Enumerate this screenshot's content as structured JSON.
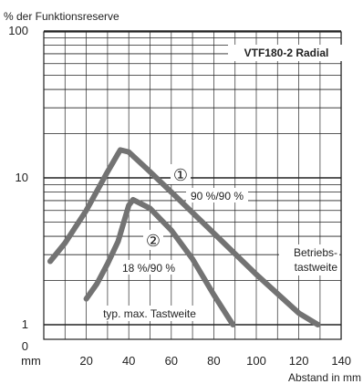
{
  "chart_data": {
    "type": "line",
    "title": "VTF180-2 Radial",
    "ylabel": "% der Funktionsreserve",
    "xlabel": "Abstand in mm",
    "x_unit_label": "mm",
    "xlim": [
      0,
      140
    ],
    "ylim": [
      1,
      100
    ],
    "y_scale": "log",
    "x_ticks": [
      20,
      40,
      60,
      80,
      100,
      120,
      140
    ],
    "y_ticks": [
      1,
      10,
      100
    ],
    "y_zero_label": "0",
    "grid": true,
    "series": [
      {
        "name": "①",
        "label": "90 %/90 %",
        "color": "#737373",
        "x": [
          3,
          10,
          20,
          30,
          36,
          40,
          50,
          60,
          80,
          100,
          120,
          129
        ],
        "y": [
          2.7,
          3.6,
          6.0,
          11.0,
          15.5,
          15.0,
          11.0,
          8.0,
          4.2,
          2.2,
          1.2,
          1.0
        ]
      },
      {
        "name": "②",
        "label": "18 %/90 %",
        "color": "#737373",
        "x": [
          20,
          25,
          30,
          35,
          40,
          42,
          50,
          60,
          70,
          80,
          89
        ],
        "y": [
          1.5,
          1.9,
          2.6,
          3.7,
          6.5,
          7.1,
          6.2,
          4.4,
          2.8,
          1.6,
          1.0
        ]
      }
    ],
    "annotations": {
      "betriebs_line1": "Betriebs-",
      "betriebs_line2": "tastweite",
      "typ_max": "typ. max. Tastweite"
    }
  }
}
